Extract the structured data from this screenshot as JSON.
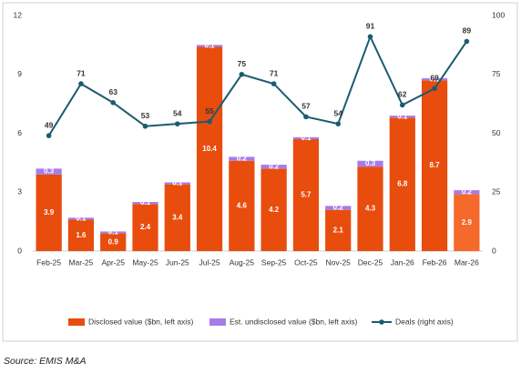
{
  "chart_data": {
    "type": "bar",
    "categories": [
      "Feb-25",
      "Mar-25",
      "Apr-25",
      "May-25",
      "Jun-25",
      "Jul-25",
      "Aug-25",
      "Sep-25",
      "Oct-25",
      "Nov-25",
      "Dec-25",
      "Jan-26",
      "Feb-26",
      "Mar-26"
    ],
    "series": [
      {
        "name": "Disclosed value ($bn, left axis)",
        "type": "bar",
        "color": "#e84d0e",
        "colors": [
          "#e84d0e",
          "#e84d0e",
          "#e84d0e",
          "#e84d0e",
          "#e84d0e",
          "#e84d0e",
          "#e84d0e",
          "#e84d0e",
          "#e84d0e",
          "#e84d0e",
          "#e84d0e",
          "#e84d0e",
          "#e84d0e",
          "#f5692b"
        ],
        "values": [
          3.9,
          1.6,
          0.9,
          2.4,
          3.4,
          10.4,
          4.6,
          4.2,
          5.7,
          2.1,
          4.3,
          6.8,
          8.7,
          2.9
        ]
      },
      {
        "name": "Est. undisclosed value ($bn, left axis)",
        "type": "bar",
        "color": "#a77ce8",
        "values": [
          0.3,
          0.1,
          0.1,
          0.1,
          0.1,
          0.1,
          0.2,
          0.2,
          0.1,
          0.2,
          0.3,
          0.1,
          0.1,
          0.2
        ]
      },
      {
        "name": "Deals (right axis)",
        "type": "line",
        "axis": "y2",
        "color": "#1b5b70",
        "values": [
          49,
          71,
          63,
          53,
          54,
          55,
          75,
          71,
          57,
          54,
          91,
          62,
          69,
          89
        ]
      }
    ],
    "ylim": [
      0,
      12
    ],
    "yticks": [
      0,
      3,
      6,
      9,
      12
    ],
    "y2lim": [
      0,
      100
    ],
    "y2ticks": [
      0,
      25,
      50,
      75,
      100
    ],
    "grid": false,
    "legend": "bottom",
    "source": "Source: EMIS M&A"
  }
}
